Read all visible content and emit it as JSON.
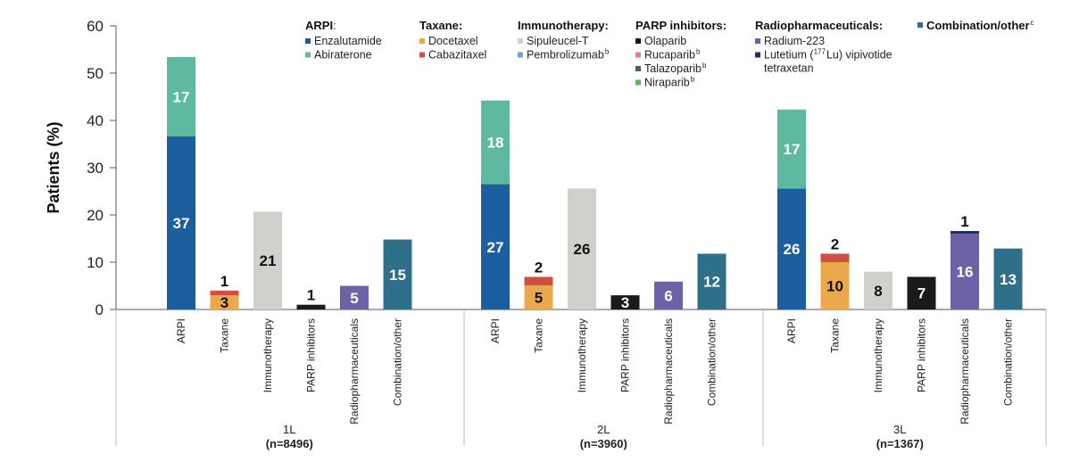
{
  "chart_data": {
    "type": "bar",
    "stacked": true,
    "ylabel": "Patients (%)",
    "ylim": [
      0,
      60
    ],
    "yticks": [
      "0",
      "10",
      "20",
      "30",
      "40",
      "50",
      "60"
    ],
    "grid": false,
    "categories": [
      "ARPI",
      "Taxane",
      "Immunotherapy",
      "PARP inhibitors",
      "Radiopharmaceuticals",
      "Combination/other"
    ],
    "groups": [
      {
        "label": "1L",
        "n_label": "(n=8496)",
        "bars": [
          {
            "category": "ARPI",
            "segments": [
              {
                "drug": "Enzalutamide",
                "value": 36.6,
                "label": "37"
              },
              {
                "drug": "Abiraterone",
                "value": 16.8,
                "label": "17"
              }
            ]
          },
          {
            "category": "Taxane",
            "segments": [
              {
                "drug": "Docetaxel",
                "value": 3.0,
                "label": "3"
              },
              {
                "drug": "Cabazitaxel",
                "value": 1.0,
                "label": "1"
              }
            ]
          },
          {
            "category": "Immunotherapy",
            "segments": [
              {
                "drug": "Sipuleucel-T",
                "value": 20.7,
                "label": "21"
              }
            ]
          },
          {
            "category": "PARP inhibitors",
            "segments": [
              {
                "drug": "Olaparib",
                "value": 1.0,
                "label": "1"
              }
            ]
          },
          {
            "category": "Radiopharmaceuticals",
            "segments": [
              {
                "drug": "Radium-223",
                "value": 5.0,
                "label": "5"
              }
            ]
          },
          {
            "category": "Combination/other",
            "segments": [
              {
                "drug": "Combination/other",
                "value": 14.8,
                "label": "15"
              }
            ]
          }
        ]
      },
      {
        "label": "2L",
        "n_label": "(n=3960)",
        "bars": [
          {
            "category": "ARPI",
            "segments": [
              {
                "drug": "Enzalutamide",
                "value": 26.5,
                "label": "27"
              },
              {
                "drug": "Abiraterone",
                "value": 17.7,
                "label": "18"
              }
            ]
          },
          {
            "category": "Taxane",
            "segments": [
              {
                "drug": "Docetaxel",
                "value": 5.1,
                "label": "5"
              },
              {
                "drug": "Cabazitaxel",
                "value": 1.8,
                "label": "2"
              }
            ]
          },
          {
            "category": "Immunotherapy",
            "segments": [
              {
                "drug": "Sipuleucel-T",
                "value": 25.6,
                "label": "26"
              }
            ]
          },
          {
            "category": "PARP inhibitors",
            "segments": [
              {
                "drug": "Olaparib",
                "value": 3.0,
                "label": "3"
              }
            ]
          },
          {
            "category": "Radiopharmaceuticals",
            "segments": [
              {
                "drug": "Radium-223",
                "value": 5.9,
                "label": "6"
              }
            ]
          },
          {
            "category": "Combination/other",
            "segments": [
              {
                "drug": "Combination/other",
                "value": 11.8,
                "label": "12"
              }
            ]
          }
        ]
      },
      {
        "label": "3L",
        "n_label": "(n=1367)",
        "bars": [
          {
            "category": "ARPI",
            "segments": [
              {
                "drug": "Enzalutamide",
                "value": 25.6,
                "label": "26"
              },
              {
                "drug": "Abiraterone",
                "value": 16.7,
                "label": "17"
              }
            ]
          },
          {
            "category": "Taxane",
            "segments": [
              {
                "drug": "Docetaxel",
                "value": 10.0,
                "label": "10"
              },
              {
                "drug": "Cabazitaxel",
                "value": 1.8,
                "label": "2"
              }
            ]
          },
          {
            "category": "Immunotherapy",
            "segments": [
              {
                "drug": "Sipuleucel-T",
                "value": 8.0,
                "label": "8"
              }
            ]
          },
          {
            "category": "PARP inhibitors",
            "segments": [
              {
                "drug": "Olaparib",
                "value": 6.9,
                "label": "7"
              }
            ]
          },
          {
            "category": "Radiopharmaceuticals",
            "segments": [
              {
                "drug": "Radium-223",
                "value": 16.0,
                "label": "16"
              },
              {
                "drug": "Lutetium vipivotide tetraxetan",
                "value": 0.6,
                "label": "1"
              }
            ]
          },
          {
            "category": "Combination/other",
            "segments": [
              {
                "drug": "Combination/other",
                "value": 12.9,
                "label": "13"
              }
            ]
          }
        ]
      }
    ]
  },
  "legend": {
    "groups": [
      {
        "title": "ARPI",
        "title_suffix": ":",
        "items": [
          {
            "label": "Enzalutamide",
            "sup": ""
          },
          {
            "label": "Abiraterone",
            "sup": ""
          }
        ]
      },
      {
        "title": "Taxane:",
        "title_suffix": "",
        "items": [
          {
            "label": "Docetaxel",
            "sup": ""
          },
          {
            "label": "Cabazitaxel",
            "sup": ""
          }
        ]
      },
      {
        "title": "Immunotherapy:",
        "title_suffix": "",
        "items": [
          {
            "label": "Sipuleucel-T",
            "sup": ""
          },
          {
            "label": "Pembrolizumab",
            "sup": "b"
          }
        ]
      },
      {
        "title": "PARP inhibitors:",
        "title_suffix": "",
        "items": [
          {
            "label": "Olaparib",
            "sup": ""
          },
          {
            "label": "Rucaparib",
            "sup": "b"
          },
          {
            "label": "Talazoparib",
            "sup": "b"
          },
          {
            "label": "Niraparib",
            "sup": "b"
          }
        ]
      },
      {
        "title": "Radiopharmaceuticals:",
        "title_suffix": "",
        "items": [
          {
            "label": "Radium-223",
            "sup": ""
          },
          {
            "label_pre": "Lutetium (",
            "label_sup": "177",
            "label_post": "Lu) vipivotide",
            "label_line2": "tetraxetan",
            "sup": ""
          }
        ]
      },
      {
        "title": "Combination/other",
        "title_suffix": "",
        "title_sup": "c",
        "items": []
      }
    ]
  },
  "colors": {
    "Enzalutamide": "#1c5e9e",
    "Abiraterone": "#5fb8a0",
    "Docetaxel": "#eba94e",
    "Cabazitaxel": "#cf4f44",
    "Sipuleucel-T": "#d0d0cc",
    "Pembrolizumab": "#6ba6d8",
    "Olaparib": "#1a1a1a",
    "Rucaparib": "#e07a93",
    "Talazoparib": "#555b66",
    "Niraparib": "#5cb85c",
    "Radium-223": "#6c62a8",
    "Lutetium vipivotide tetraxetan": "#1f3266",
    "Combination/other": "#2e6f89"
  }
}
